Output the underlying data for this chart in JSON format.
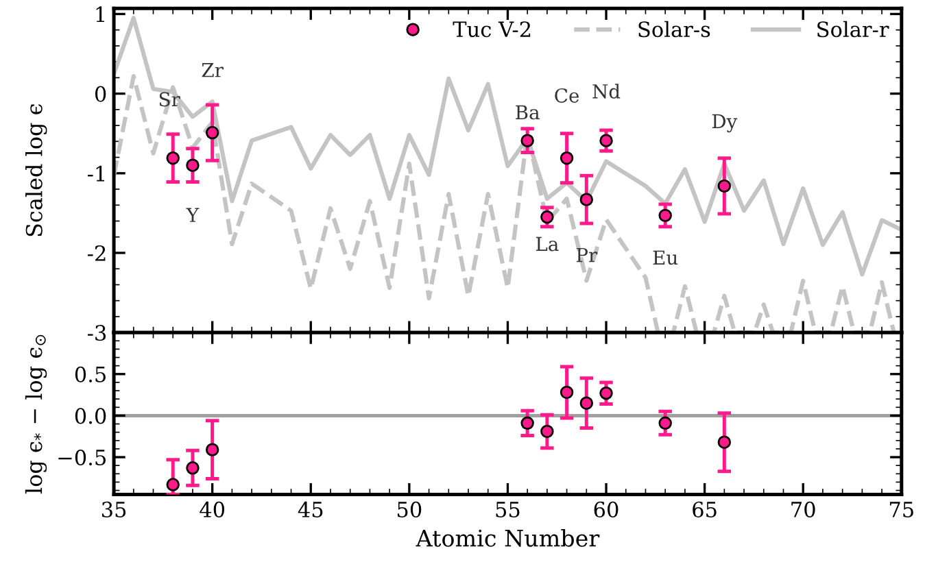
{
  "chart_data": [
    {
      "type": "scatter",
      "ylabel": "Scaled log ϵ",
      "xlim": [
        35,
        75
      ],
      "xticks": [
        35,
        40,
        45,
        50,
        55,
        60,
        65,
        70,
        75
      ],
      "ylim": [
        -3,
        1.07
      ],
      "yticks": [
        -3,
        -2,
        -1,
        0,
        1
      ],
      "tick_labels": "y",
      "legend": "top right",
      "grid": false,
      "series": [
        {
          "name": "Tuc V-2",
          "color": "#ff1a8c",
          "marker": "circle",
          "x": [
            38,
            39,
            40,
            56,
            57,
            58,
            59,
            60,
            63,
            66
          ],
          "values": [
            -0.81,
            -0.9,
            -0.49,
            -0.59,
            -1.55,
            -0.81,
            -1.33,
            -0.59,
            -1.53,
            -1.16
          ],
          "errors": [
            0.3,
            0.21,
            0.35,
            0.15,
            0.12,
            0.31,
            0.3,
            0.13,
            0.14,
            0.35
          ]
        },
        {
          "name": "Solar-s",
          "type": "line",
          "color": "#c4c4c4",
          "line_style": "dashed",
          "x": [
            35,
            36,
            37,
            38,
            39,
            40,
            41,
            42,
            44,
            45,
            46,
            47,
            48,
            49,
            50,
            51,
            52,
            53,
            54,
            55,
            56,
            57,
            58,
            59,
            60,
            62,
            62.63,
            63.41,
            64,
            64.59,
            65.47,
            66,
            66.53,
            67.53,
            68,
            68.47,
            69.38,
            70,
            70.62,
            71.41,
            72,
            72.59,
            73.39,
            74,
            74.61
          ],
          "values": [
            -1.03,
            0.22,
            -0.75,
            0.08,
            -0.68,
            -0.36,
            -1.89,
            -1.13,
            -1.47,
            -2.45,
            -1.44,
            -2.2,
            -1.35,
            -2.44,
            -0.88,
            -2.57,
            -1.26,
            -2.54,
            -1.26,
            -2.44,
            -0.5,
            -1.61,
            -1.32,
            -2.35,
            -1.58,
            -2.31,
            -3,
            -3,
            -2.42,
            -3,
            -3,
            -2.54,
            -3,
            -3,
            -2.65,
            -3,
            -3,
            -2.35,
            -3,
            -3,
            -2.42,
            -3,
            -3,
            -2.37,
            -3
          ]
        },
        {
          "name": "Solar-r",
          "type": "line",
          "color": "#c4c4c4",
          "line_style": "solid",
          "x": [
            35,
            36,
            37,
            38,
            39,
            40,
            41,
            42,
            44,
            45,
            46,
            47,
            48,
            49,
            50,
            51,
            52,
            53,
            54,
            55,
            56,
            57,
            58,
            59,
            60,
            62,
            63,
            64,
            65,
            66,
            67,
            68,
            69,
            70,
            71,
            72,
            73,
            74,
            75
          ],
          "values": [
            0.25,
            0.95,
            0.06,
            0.02,
            -0.29,
            -0.1,
            -1.35,
            -0.59,
            -0.42,
            -0.94,
            -0.52,
            -0.77,
            -0.52,
            -1.32,
            -0.52,
            -1.02,
            0.19,
            -0.46,
            0.12,
            -0.91,
            -0.56,
            -1.32,
            -1.12,
            -1.35,
            -0.85,
            -1.16,
            -1.38,
            -0.95,
            -1.61,
            -0.88,
            -1.47,
            -1.09,
            -1.89,
            -1.19,
            -1.9,
            -1.49,
            -2.27,
            -1.59,
            -1.71
          ]
        }
      ],
      "annotations": [
        "Sr",
        "Y",
        "Zr",
        "Ba",
        "La",
        "Ce",
        "Pr",
        "Nd",
        "Eu",
        "Dy"
      ]
    },
    {
      "type": "scatter",
      "xlabel": "Atomic Number",
      "ylabel": "log ϵ$_{*}$ − log ϵ$_{⊙}$",
      "xlim": [
        35,
        75
      ],
      "xticks": [
        35,
        40,
        45,
        50,
        55,
        60,
        65,
        70,
        75
      ],
      "ylim": [
        -0.95,
        1.0
      ],
      "yticks": [
        {
          "value": -0.5,
          "label": "−0.5"
        },
        {
          "value": 0,
          "label": "0.0"
        },
        {
          "value": 0.5,
          "label": "0.5"
        }
      ],
      "grid": false,
      "ref_lines": [
        {
          "axis": "y",
          "value": 0,
          "color": "#a0a0a0"
        }
      ],
      "series": [
        {
          "color": "#ff1a8c",
          "marker": "circle",
          "x": [
            38,
            39,
            40,
            56,
            57,
            58,
            59,
            60,
            63,
            66
          ],
          "values": [
            -0.83,
            -0.63,
            -0.41,
            -0.09,
            -0.19,
            0.28,
            0.15,
            0.27,
            -0.09,
            -0.32
          ],
          "errors": [
            [
              -0.95,
              -0.53
            ],
            0.21,
            0.35,
            0.15,
            0.2,
            0.31,
            0.3,
            0.13,
            0.14,
            0.35
          ]
        }
      ]
    }
  ]
}
